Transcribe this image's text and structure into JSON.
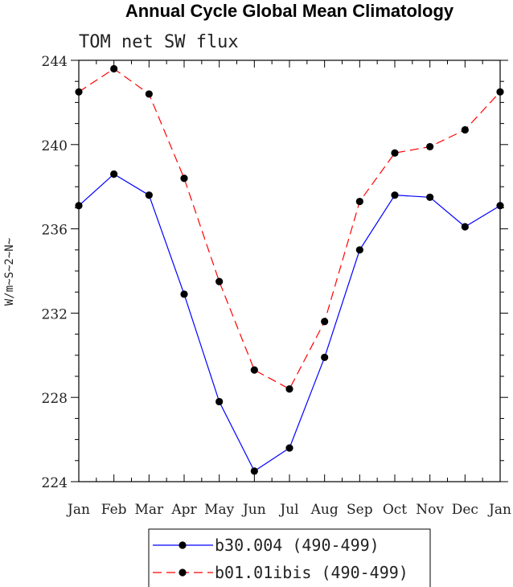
{
  "chart_data": {
    "type": "line",
    "title": "Annual Cycle Global Mean Climatology",
    "subtitle": "TOM net SW flux",
    "ylabel": "W/m~S~2~N~",
    "xlabel": "",
    "categories": [
      "Jan",
      "Feb",
      "Mar",
      "Apr",
      "May",
      "Jun",
      "Jul",
      "Aug",
      "Sep",
      "Oct",
      "Nov",
      "Dec",
      "Jan"
    ],
    "ylim": [
      224,
      244
    ],
    "yticks": [
      224,
      228,
      232,
      236,
      240,
      244
    ],
    "grid": false,
    "legend_position": "bottom-center",
    "series": [
      {
        "name": "b30.004 (490-499)",
        "color": "#0000ff",
        "line_style": "solid",
        "marker": "filled-circle",
        "values": [
          237.1,
          238.6,
          237.6,
          232.9,
          227.8,
          224.5,
          225.6,
          229.9,
          235.0,
          237.6,
          237.5,
          236.1,
          237.1
        ]
      },
      {
        "name": "b01.01ibis (490-499)",
        "color": "#ff0000",
        "line_style": "dashed",
        "marker": "filled-circle",
        "values": [
          242.5,
          243.6,
          242.4,
          238.4,
          233.5,
          229.3,
          228.4,
          231.6,
          237.3,
          239.6,
          239.9,
          240.7,
          242.5
        ]
      }
    ]
  }
}
